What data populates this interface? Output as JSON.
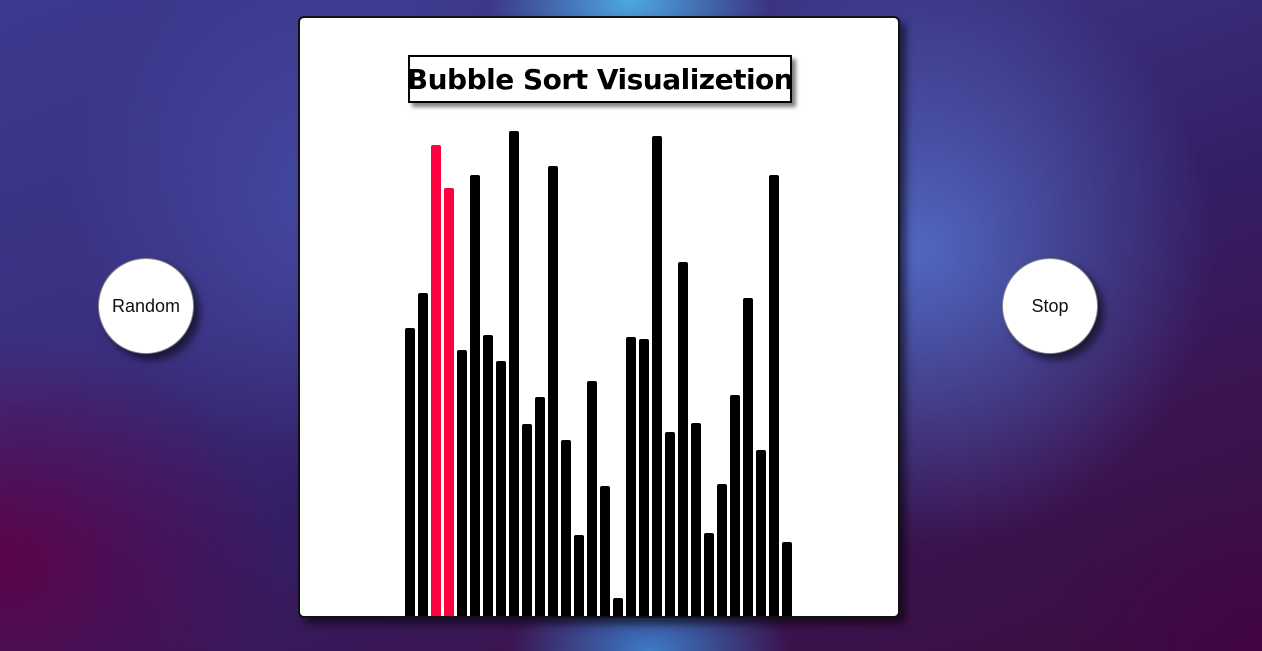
{
  "title": "Bubble Sort Visualizetion",
  "buttons": {
    "random_label": "Random",
    "stop_label": "Stop"
  },
  "colors": {
    "bar_default": "#000000",
    "bar_active": "#ff0040",
    "panel_background": "#ffffff"
  },
  "chart_data": {
    "type": "bar",
    "title": "Bubble Sort Visualizetion",
    "xlabel": "",
    "ylabel": "",
    "ylim": [
      0,
      500
    ],
    "values": [
      290,
      325,
      473,
      430,
      268,
      443,
      283,
      257,
      487,
      194,
      221,
      452,
      178,
      83,
      237,
      132,
      20,
      281,
      279,
      482,
      186,
      356,
      195,
      85,
      134,
      223,
      320,
      168,
      443,
      76
    ],
    "active_indices": [
      2,
      3
    ]
  }
}
